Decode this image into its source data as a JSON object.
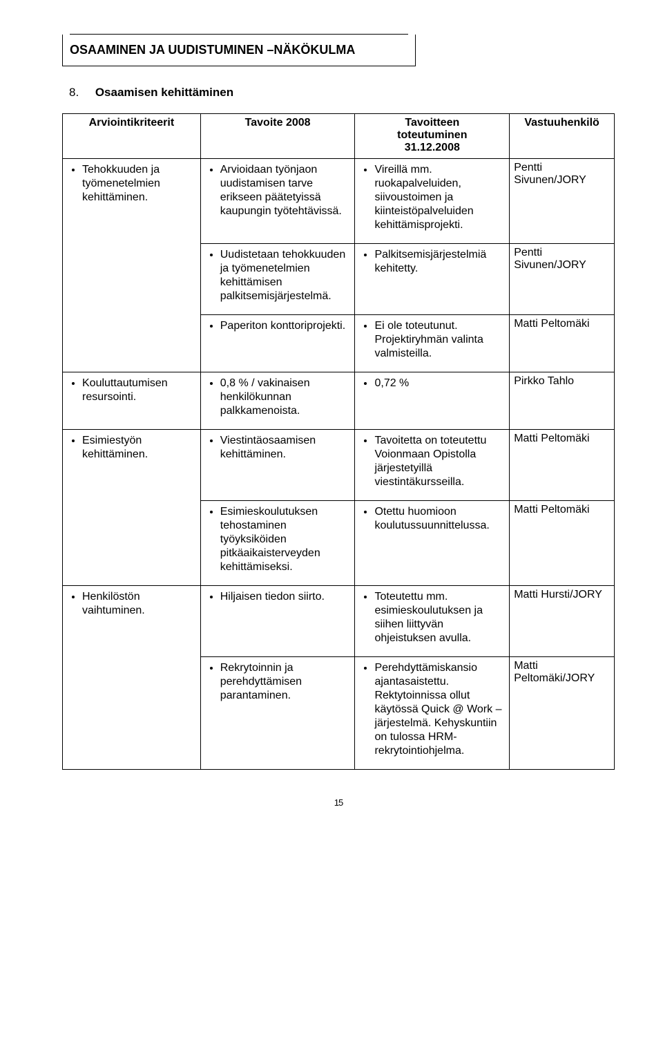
{
  "title_box": "OSAAMINEN JA UUDISTUMINEN –NÄKÖKULMA",
  "section_number": "8.",
  "section_title": "Osaamisen kehittäminen",
  "headers": {
    "col1": "Arviointikriteerit",
    "col2": "Tavoite 2008",
    "col3_line1": "Tavoitteen",
    "col3_line2": "toteutuminen",
    "col3_line3": "31.12.2008",
    "col4": "Vastuuhenkilö"
  },
  "r1": {
    "criteria": "Tehokkuuden ja työmenetelmien kehittäminen.",
    "goal": "Arvioidaan työnjaon uudistamisen tarve erikseen päätetyissä kaupungin työtehtävissä.",
    "result": "Vireillä mm. ruokapalveluiden, siivoustoimen ja kiinteistöpalveluiden kehittämisprojekti.",
    "owner": "Pentti Sivunen/JORY"
  },
  "r2": {
    "goal": "Uudistetaan tehokkuuden ja työmenetelmien kehittämisen palkitsemisjärjestelmä.",
    "result": "Palkitsemisjärjestelmiä kehitetty.",
    "owner": "Pentti Sivunen/JORY"
  },
  "r3": {
    "goal": "Paperiton konttoriprojekti.",
    "result": "Ei ole toteutunut. Projektiryhmän valinta valmisteilla.",
    "owner": "Matti Peltomäki"
  },
  "r4": {
    "criteria": "Kouluttautumisen resursointi.",
    "goal": "0,8 % / vakinaisen henkilökunnan palkkamenoista.",
    "result": "0,72 %",
    "owner": "Pirkko Tahlo"
  },
  "r5": {
    "criteria": "Esimiestyön kehittäminen.",
    "goal": "Viestintäosaamisen kehittäminen.",
    "result": "Tavoitetta on toteutettu Voionmaan Opistolla järjestetyillä viestintäkursseilla.",
    "owner": "Matti Peltomäki"
  },
  "r6": {
    "goal": "Esimieskoulutuksen tehostaminen työyksiköiden pitkäaikaisterveyden kehittämiseksi.",
    "result": "Otettu huomioon koulutussuunnittelussa.",
    "owner": "Matti Peltomäki"
  },
  "r7": {
    "criteria": "Henkilöstön vaihtuminen.",
    "goal": "Hiljaisen tiedon siirto.",
    "result": "Toteutettu mm. esimieskoulutuksen ja siihen liittyvän ohjeistuksen avulla.",
    "owner": "Matti Hursti/JORY"
  },
  "r8": {
    "goal": "Rekrytoinnin ja perehdyttämisen parantaminen.",
    "result": "Perehdyttämiskansio ajantasaistettu. Rektytoinnissa ollut käytössä Quick @ Work –järjestelmä. Kehyskuntiin on tulossa HRM-rekrytointiohjelma.",
    "owner": "Matti Peltomäki/JORY"
  },
  "page_number": "15",
  "colors": {
    "text": "#000000",
    "background": "#ffffff",
    "border": "#000000"
  },
  "fonts": {
    "family": "Arial",
    "title_size_pt": 14,
    "body_size_pt": 12
  }
}
